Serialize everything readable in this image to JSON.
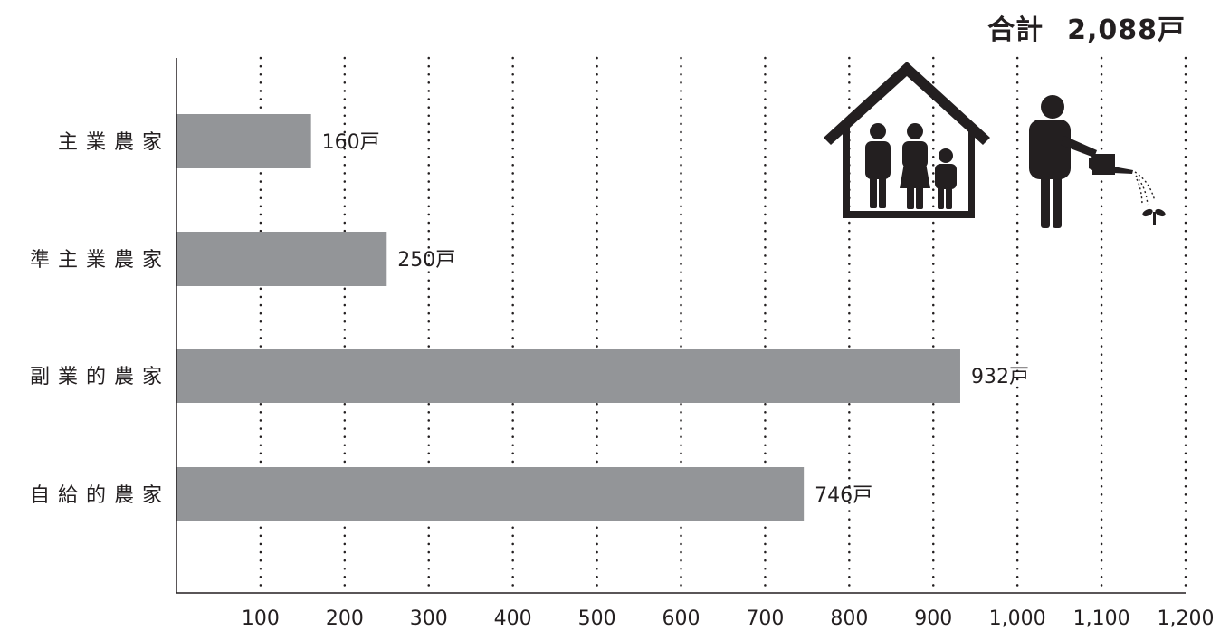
{
  "total": {
    "label": "合計",
    "value": "2,088戸"
  },
  "chart_data": {
    "type": "bar",
    "orientation": "horizontal",
    "categories": [
      "主業農家",
      "準主業農家",
      "副業的農家",
      "自給的農家"
    ],
    "values": [
      160,
      250,
      932,
      746
    ],
    "value_labels": [
      "160戸",
      "250戸",
      "932戸",
      "746戸"
    ],
    "xlim": [
      0,
      1200
    ],
    "xticks": [
      100,
      200,
      300,
      400,
      500,
      600,
      700,
      800,
      900,
      1000,
      1100,
      1200
    ],
    "xtick_labels": [
      "100",
      "200",
      "300",
      "400",
      "500",
      "600",
      "700",
      "800",
      "900",
      "1,000",
      "1,100",
      "1,200"
    ],
    "grid": "vertical-dotted",
    "bar_color": "#939598",
    "icons": [
      "house-family-icon",
      "farmer-watering-icon"
    ]
  }
}
